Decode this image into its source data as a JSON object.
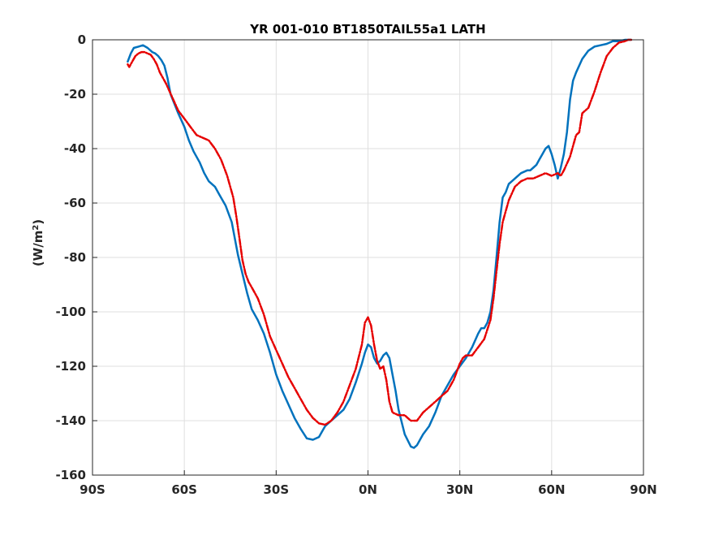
{
  "chart_data": {
    "type": "line",
    "title": "YR 001-010 BT1850TAIL55a1 LATH",
    "xlabel": "",
    "ylabel": "(W/m²)",
    "ylabel_parts": {
      "base": "(W/m",
      "sup": "2",
      "close": ")"
    },
    "xlim": [
      -90,
      90
    ],
    "ylim": [
      -160,
      0
    ],
    "grid": true,
    "x_ticks": [
      {
        "value": -90,
        "label": "90S"
      },
      {
        "value": -60,
        "label": "60S"
      },
      {
        "value": -30,
        "label": "30S"
      },
      {
        "value": 0,
        "label": "0N"
      },
      {
        "value": 30,
        "label": "30N"
      },
      {
        "value": 60,
        "label": "60N"
      },
      {
        "value": 90,
        "label": "90N"
      }
    ],
    "y_ticks": [
      {
        "value": 0,
        "label": "0"
      },
      {
        "value": -20,
        "label": "-20"
      },
      {
        "value": -40,
        "label": "-40"
      },
      {
        "value": -60,
        "label": "-60"
      },
      {
        "value": -80,
        "label": "-80"
      },
      {
        "value": -100,
        "label": "-100"
      },
      {
        "value": -120,
        "label": "-120"
      },
      {
        "value": -140,
        "label": "-140"
      },
      {
        "value": -160,
        "label": "-160"
      }
    ],
    "series": [
      {
        "color": "#0072BD",
        "style": "solid",
        "x": [
          -78.5,
          -77.5,
          -76.5,
          -75,
          -73.5,
          -72,
          -70.5,
          -69.5,
          -68.5,
          -67.5,
          -66.5,
          -65.5,
          -64.5,
          -62,
          -60,
          -58.5,
          -57,
          -55,
          -53.5,
          -52,
          -50,
          -48.5,
          -46.5,
          -44.5,
          -42.5,
          -41,
          -39.5,
          -38,
          -36,
          -34,
          -32,
          -30,
          -28,
          -26,
          -24,
          -22,
          -20,
          -18,
          -16,
          -15,
          -14,
          -13,
          -12,
          -10,
          -8,
          -6,
          -4,
          -2,
          -1,
          0,
          1,
          2,
          3,
          4,
          5,
          6,
          7,
          8,
          9,
          10,
          12,
          14,
          15,
          16,
          17,
          18,
          20,
          22,
          24,
          26,
          28,
          30,
          32,
          34,
          36,
          37,
          38,
          39,
          40,
          41,
          42,
          43,
          44,
          45,
          46,
          47,
          48,
          50,
          52,
          53,
          54,
          55,
          56,
          57,
          58,
          59,
          60,
          61,
          62,
          63,
          64,
          65,
          66,
          67,
          68,
          70,
          72,
          74,
          76,
          78,
          80,
          82,
          84,
          86
        ],
        "y": [
          -8,
          -5,
          -3,
          -2.5,
          -2,
          -3,
          -4.5,
          -5,
          -6,
          -7.5,
          -9.5,
          -14,
          -20,
          -27,
          -32,
          -37,
          -41,
          -45,
          -49,
          -52,
          -54,
          -57,
          -61,
          -67,
          -79,
          -86,
          -93,
          -99,
          -103,
          -108,
          -115,
          -123,
          -129,
          -134,
          -139,
          -143,
          -146.5,
          -147,
          -146,
          -144,
          -142,
          -141,
          -140,
          -138,
          -136,
          -132,
          -126,
          -119,
          -115,
          -112,
          -113,
          -117,
          -119,
          -118,
          -116,
          -115,
          -117,
          -123,
          -129,
          -136,
          -145,
          -149.5,
          -150,
          -149,
          -147,
          -145,
          -142,
          -137,
          -131,
          -127,
          -123,
          -120,
          -117,
          -113,
          -108,
          -106,
          -106,
          -104,
          -100,
          -92,
          -80,
          -67,
          -58,
          -56,
          -53,
          -52,
          -51,
          -49,
          -48,
          -48,
          -47,
          -46,
          -44,
          -42,
          -40,
          -39,
          -42,
          -46,
          -51,
          -47,
          -42,
          -34,
          -22,
          -15,
          -12,
          -7,
          -4,
          -2.5,
          -2,
          -1.5,
          -0.5,
          -0.5,
          0,
          0
        ]
      },
      {
        "color": "#E60000",
        "style": "dashdot",
        "x": [
          -78.5,
          -78,
          -77,
          -76,
          -75,
          -74,
          -73,
          -72,
          -71,
          -70,
          -69,
          -68,
          -66,
          -64,
          -62,
          -60,
          -58,
          -56,
          -54,
          -52,
          -50,
          -48,
          -46,
          -44,
          -43,
          -42,
          -41,
          -40,
          -39,
          -38,
          -36,
          -34,
          -32,
          -30,
          -28,
          -26,
          -24,
          -22,
          -20,
          -18,
          -16,
          -14,
          -12,
          -10,
          -8,
          -6,
          -4,
          -2,
          -1,
          0,
          1,
          2,
          3,
          4,
          5,
          6,
          7,
          8,
          10,
          12,
          13,
          14,
          16,
          18,
          20,
          22,
          24,
          26,
          28,
          30,
          31,
          32,
          34,
          36,
          38,
          40,
          41,
          42,
          43,
          44,
          46,
          48,
          50,
          52,
          54,
          56,
          58,
          60,
          62,
          63,
          64,
          66,
          67,
          68,
          69,
          70,
          72,
          74,
          76,
          78,
          80,
          82,
          84,
          85,
          86
        ],
        "y": [
          -9,
          -10,
          -8,
          -6,
          -5,
          -4.5,
          -4.5,
          -5,
          -5.5,
          -7,
          -9,
          -12,
          -16,
          -21,
          -26,
          -29,
          -32,
          -35,
          -36,
          -37,
          -40,
          -44,
          -50,
          -58,
          -65,
          -73,
          -81,
          -86,
          -89,
          -91,
          -95,
          -101,
          -109,
          -114,
          -119,
          -124,
          -128,
          -132,
          -136,
          -139,
          -141,
          -141.5,
          -140,
          -137,
          -133,
          -127,
          -121,
          -112,
          -104,
          -102,
          -105,
          -112,
          -118,
          -121,
          -120,
          -125,
          -133,
          -137,
          -138,
          -138,
          -139,
          -140,
          -140,
          -137,
          -135,
          -133,
          -131,
          -129,
          -125,
          -119,
          -117,
          -116,
          -116,
          -113,
          -110,
          -103,
          -95,
          -85,
          -75,
          -67,
          -59,
          -54,
          -52,
          -51,
          -51,
          -50,
          -49,
          -50,
          -49,
          -50,
          -48,
          -43,
          -39,
          -35,
          -34,
          -27,
          -25,
          -19,
          -12,
          -6,
          -3,
          -1,
          -0.5,
          0,
          0
        ]
      }
    ]
  }
}
